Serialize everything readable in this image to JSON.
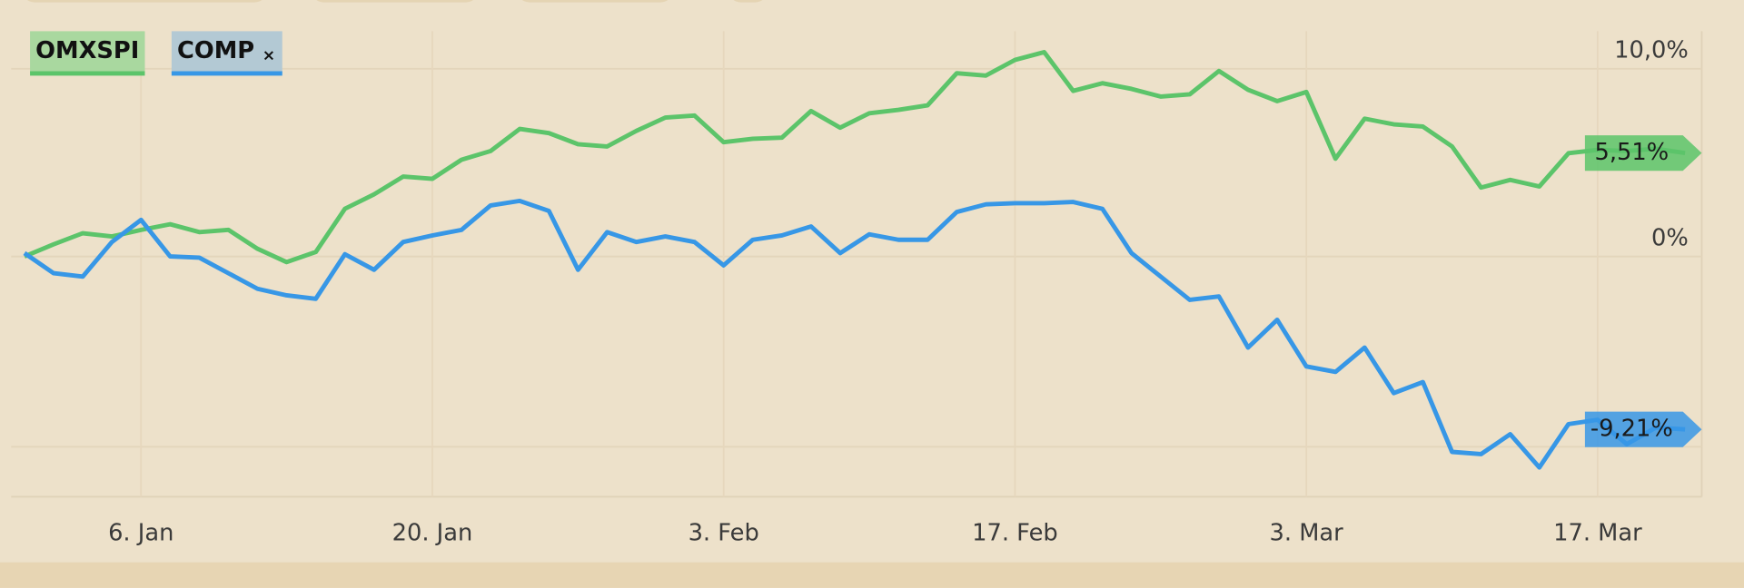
{
  "chart_data": {
    "type": "line",
    "categories": [
      null,
      null,
      null,
      null,
      "6. Jan",
      null,
      null,
      null,
      null,
      null,
      null,
      null,
      null,
      null,
      "20. Jan",
      null,
      null,
      null,
      null,
      null,
      null,
      null,
      null,
      null,
      "3. Feb",
      null,
      null,
      null,
      null,
      null,
      null,
      null,
      null,
      null,
      "17. Feb",
      null,
      null,
      null,
      null,
      null,
      null,
      null,
      null,
      null,
      "3. Mar",
      null,
      null,
      null,
      null,
      null,
      null,
      null,
      null,
      null,
      "17. Mar",
      null,
      null,
      null
    ],
    "series": [
      {
        "name": "OMXSPI",
        "color": "#5cc46a",
        "end_label": "5,51%",
        "values": [
          0.0,
          0.65,
          1.24,
          1.07,
          1.42,
          1.72,
          1.3,
          1.42,
          0.41,
          -0.3,
          0.24,
          2.54,
          3.31,
          4.26,
          4.14,
          5.15,
          5.62,
          6.8,
          6.57,
          5.98,
          5.86,
          6.69,
          7.4,
          7.51,
          6.09,
          6.27,
          6.33,
          7.75,
          6.86,
          7.63,
          7.81,
          8.05,
          9.76,
          9.64,
          10.47,
          10.89,
          8.82,
          9.23,
          8.93,
          8.52,
          8.64,
          9.88,
          8.88,
          8.28,
          8.76,
          5.21,
          7.34,
          7.04,
          6.92,
          5.86,
          3.67,
          4.08,
          3.73,
          5.5,
          5.68,
          5.62,
          5.74,
          5.51
        ]
      },
      {
        "name": "COMP",
        "color": "#3797e6",
        "end_label": "-9,21%",
        "remove_icon": "×",
        "values": [
          0.18,
          -0.89,
          -1.07,
          0.77,
          1.95,
          0.0,
          -0.06,
          -0.89,
          -1.72,
          -2.07,
          -2.25,
          0.12,
          -0.71,
          0.77,
          1.12,
          1.42,
          2.72,
          2.96,
          2.43,
          -0.71,
          1.3,
          0.77,
          1.07,
          0.77,
          -0.47,
          0.89,
          1.12,
          1.6,
          0.18,
          1.18,
          0.89,
          0.89,
          2.37,
          2.78,
          2.84,
          2.84,
          2.9,
          2.54,
          0.18,
          -1.07,
          -2.31,
          -2.13,
          -4.85,
          -3.37,
          -5.86,
          -6.15,
          -4.85,
          -7.28,
          -6.69,
          -10.41,
          -10.53,
          -9.47,
          -11.24,
          -8.93,
          -8.7,
          -10.0,
          -9.11,
          -9.21
        ]
      }
    ],
    "ylim": [
      -12.8,
      12.0
    ],
    "yticks": [
      {
        "value": 10,
        "label": "10,0%"
      },
      {
        "value": 0,
        "label": "0%"
      }
    ],
    "grid": true
  }
}
